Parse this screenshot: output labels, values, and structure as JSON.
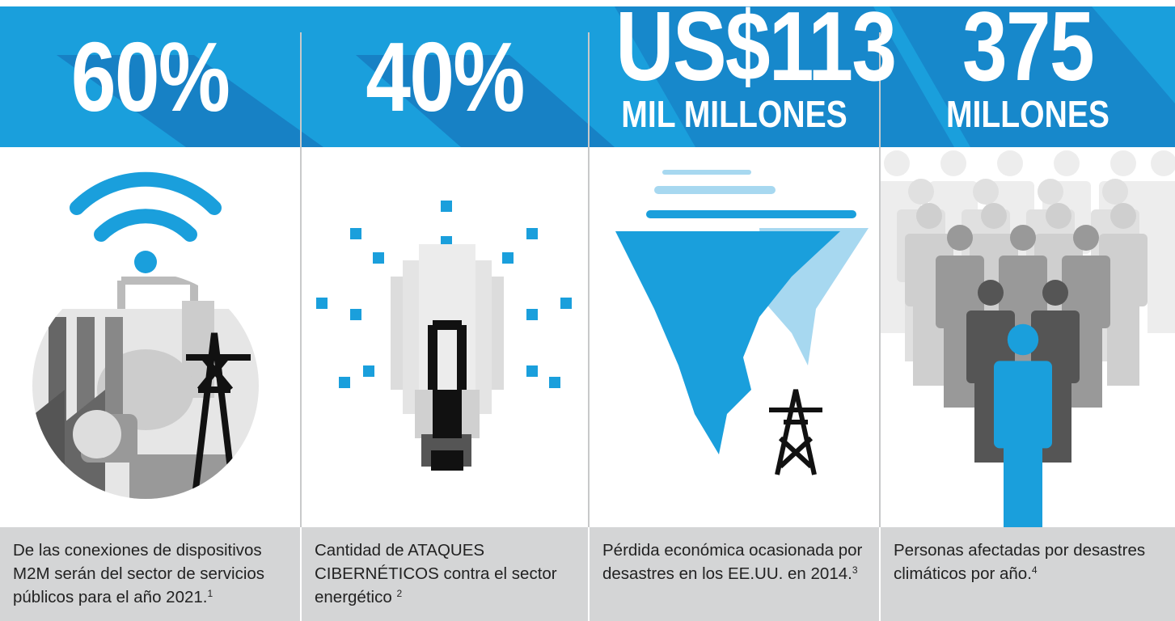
{
  "panels": [
    {
      "headline": "60%",
      "description": "De las conexiones de dispositivos M2M serán del sector de servicios públicos para el año 2021.",
      "note": "1"
    },
    {
      "headline": "40%",
      "description": "Cantidad de ATAQUES CIBERNÉTICOS contra el sector energético",
      "note": "2"
    },
    {
      "headline": "US$113",
      "unit": "MIL MILLONES",
      "description": "Pérdida económica ocasionada por desastres en los EE.UU. en 2014.",
      "note": "3"
    },
    {
      "headline": "375",
      "unit": "MILLONES",
      "description": "Personas afectadas por desastres climáticos por año.",
      "note": "4"
    }
  ]
}
